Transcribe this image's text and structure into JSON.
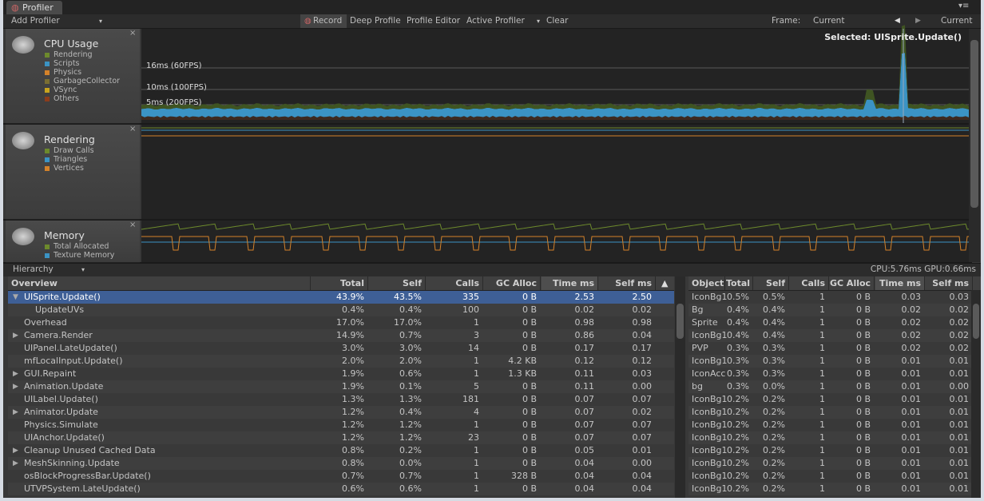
{
  "tab": "Profiler",
  "toolbar": {
    "add_profiler": "Add Profiler",
    "record": "Record",
    "deep_profile": "Deep Profile",
    "profile_editor": "Profile Editor",
    "active_profiler": "Active Profiler",
    "clear": "Clear",
    "frame_label": "Frame:",
    "frame_value": "Current",
    "current": "Current"
  },
  "panels": [
    {
      "title": "CPU Usage",
      "legend": [
        {
          "label": "Rendering",
          "color": "#6d8a2c"
        },
        {
          "label": "Scripts",
          "color": "#3b93c4"
        },
        {
          "label": "Physics",
          "color": "#d4822a"
        },
        {
          "label": "GarbageCollector",
          "color": "#7a6e32"
        },
        {
          "label": "VSync",
          "color": "#c8a41e"
        },
        {
          "label": "Others",
          "color": "#8c3c1c"
        }
      ]
    },
    {
      "title": "Rendering",
      "legend": [
        {
          "label": "Draw Calls",
          "color": "#6d8a2c"
        },
        {
          "label": "Triangles",
          "color": "#3b93c4"
        },
        {
          "label": "Vertices",
          "color": "#d4822a"
        }
      ]
    },
    {
      "title": "Memory",
      "legend": [
        {
          "label": "Total Allocated",
          "color": "#6d8a2c"
        },
        {
          "label": "Texture Memory",
          "color": "#3b93c4"
        }
      ]
    }
  ],
  "cpu_graph": {
    "markers": [
      "16ms (60FPS)",
      "10ms (100FPS)",
      "5ms (200FPS)"
    ],
    "selected": "Selected: UISprite.Update()"
  },
  "hierarchy": {
    "view": "Hierarchy",
    "stats": "CPU:5.76ms   GPU:0.66ms",
    "columns": [
      "Overview",
      "Total",
      "Self",
      "Calls",
      "GC Alloc",
      "Time ms",
      "Self ms"
    ],
    "sort_indicator": "▲",
    "rows": [
      {
        "cells": [
          "UISprite.Update()",
          "43.9%",
          "43.5%",
          "335",
          "0 B",
          "2.53",
          "2.50"
        ],
        "toggle": "▼",
        "selected": true
      },
      {
        "cells": [
          "UpdateUVs",
          "0.4%",
          "0.4%",
          "100",
          "0 B",
          "0.02",
          "0.02"
        ],
        "depth": 1
      },
      {
        "cells": [
          "Overhead",
          "17.0%",
          "17.0%",
          "1",
          "0 B",
          "0.98",
          "0.98"
        ]
      },
      {
        "cells": [
          "Camera.Render",
          "14.9%",
          "0.7%",
          "3",
          "0 B",
          "0.86",
          "0.04"
        ],
        "toggle": "▶"
      },
      {
        "cells": [
          "UIPanel.LateUpdate()",
          "3.0%",
          "3.0%",
          "14",
          "0 B",
          "0.17",
          "0.17"
        ]
      },
      {
        "cells": [
          "mfLocalInput.Update()",
          "2.0%",
          "2.0%",
          "1",
          "4.2 KB",
          "0.12",
          "0.12"
        ]
      },
      {
        "cells": [
          "GUI.Repaint",
          "1.9%",
          "0.6%",
          "1",
          "1.3 KB",
          "0.11",
          "0.03"
        ],
        "toggle": "▶"
      },
      {
        "cells": [
          "Animation.Update",
          "1.9%",
          "0.1%",
          "5",
          "0 B",
          "0.11",
          "0.00"
        ],
        "toggle": "▶"
      },
      {
        "cells": [
          "UILabel.Update()",
          "1.3%",
          "1.3%",
          "181",
          "0 B",
          "0.07",
          "0.07"
        ]
      },
      {
        "cells": [
          "Animator.Update",
          "1.2%",
          "0.4%",
          "4",
          "0 B",
          "0.07",
          "0.02"
        ],
        "toggle": "▶"
      },
      {
        "cells": [
          "Physics.Simulate",
          "1.2%",
          "1.2%",
          "1",
          "0 B",
          "0.07",
          "0.07"
        ]
      },
      {
        "cells": [
          "UIAnchor.Update()",
          "1.2%",
          "1.2%",
          "23",
          "0 B",
          "0.07",
          "0.07"
        ]
      },
      {
        "cells": [
          "Cleanup Unused Cached Data",
          "0.8%",
          "0.2%",
          "1",
          "0 B",
          "0.05",
          "0.01"
        ],
        "toggle": "▶"
      },
      {
        "cells": [
          "MeshSkinning.Update",
          "0.8%",
          "0.0%",
          "1",
          "0 B",
          "0.04",
          "0.00"
        ],
        "toggle": "▶"
      },
      {
        "cells": [
          "osBlockProgressBar.Update()",
          "0.7%",
          "0.7%",
          "1",
          "328 B",
          "0.04",
          "0.04"
        ]
      },
      {
        "cells": [
          "UTVPSystem.LateUpdate()",
          "0.6%",
          "0.6%",
          "1",
          "0 B",
          "0.04",
          "0.04"
        ]
      }
    ]
  },
  "objects": {
    "columns": [
      "Object",
      "Total",
      "Self",
      "Calls",
      "GC Alloc",
      "Time ms",
      "Self ms"
    ],
    "rows": [
      [
        "IconBg1",
        "0.5%",
        "0.5%",
        "1",
        "0 B",
        "0.03",
        "0.03"
      ],
      [
        "Bg",
        "0.4%",
        "0.4%",
        "1",
        "0 B",
        "0.02",
        "0.02"
      ],
      [
        "Sprite",
        "0.4%",
        "0.4%",
        "1",
        "0 B",
        "0.02",
        "0.02"
      ],
      [
        "IconBg1",
        "0.4%",
        "0.4%",
        "1",
        "0 B",
        "0.02",
        "0.02"
      ],
      [
        "PVP",
        "0.3%",
        "0.3%",
        "1",
        "0 B",
        "0.02",
        "0.02"
      ],
      [
        "IconBg1",
        "0.3%",
        "0.3%",
        "1",
        "0 B",
        "0.01",
        "0.01"
      ],
      [
        "IconAcc",
        "0.3%",
        "0.3%",
        "1",
        "0 B",
        "0.01",
        "0.01"
      ],
      [
        "bg",
        "0.3%",
        "0.0%",
        "1",
        "0 B",
        "0.01",
        "0.00"
      ],
      [
        "IconBg1",
        "0.2%",
        "0.2%",
        "1",
        "0 B",
        "0.01",
        "0.01"
      ],
      [
        "IconBg1",
        "0.2%",
        "0.2%",
        "1",
        "0 B",
        "0.01",
        "0.01"
      ],
      [
        "IconBg1",
        "0.2%",
        "0.2%",
        "1",
        "0 B",
        "0.01",
        "0.01"
      ],
      [
        "IconBg1",
        "0.2%",
        "0.2%",
        "1",
        "0 B",
        "0.01",
        "0.01"
      ],
      [
        "IconBg1",
        "0.2%",
        "0.2%",
        "1",
        "0 B",
        "0.01",
        "0.01"
      ],
      [
        "IconBg1",
        "0.2%",
        "0.2%",
        "1",
        "0 B",
        "0.01",
        "0.01"
      ],
      [
        "IconBg1",
        "0.2%",
        "0.2%",
        "1",
        "0 B",
        "0.01",
        "0.01"
      ],
      [
        "IconBg1",
        "0.2%",
        "0.2%",
        "1",
        "0 B",
        "0.01",
        "0.01"
      ]
    ]
  }
}
